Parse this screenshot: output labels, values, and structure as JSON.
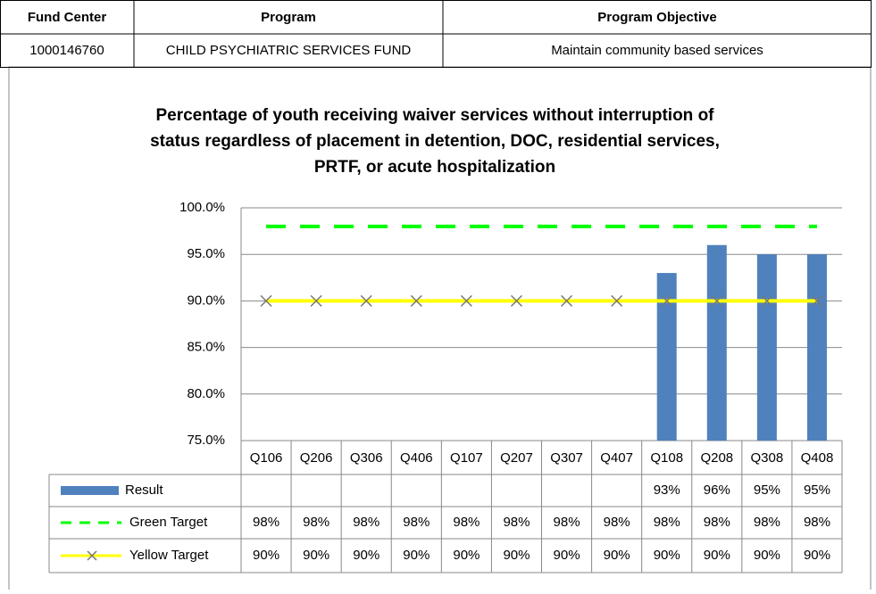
{
  "table": {
    "header": [
      "Fund Center",
      "Program",
      "Program Objective"
    ],
    "rows": [
      [
        "1000146760",
        "CHILD PSYCHIATRIC SERVICES FUND",
        "Maintain community based services"
      ]
    ]
  },
  "chart_data": {
    "type": "bar",
    "title": [
      "Percentage of youth receiving waiver services without interruption of",
      "status regardless of placement in detention, DOC, residential services,",
      "PRTF, or acute hospitalization"
    ],
    "categories": [
      "Q106",
      "Q206",
      "Q306",
      "Q406",
      "Q107",
      "Q207",
      "Q307",
      "Q407",
      "Q108",
      "Q208",
      "Q308",
      "Q408"
    ],
    "ylim": [
      75,
      100
    ],
    "yticks": [
      {
        "value": 75,
        "label": "75.0%"
      },
      {
        "value": 80,
        "label": "80.0%"
      },
      {
        "value": 85,
        "label": "85.0%"
      },
      {
        "value": 90,
        "label": "90.0%"
      },
      {
        "value": 95,
        "label": "95.0%"
      },
      {
        "value": 100,
        "label": "100.0%"
      }
    ],
    "grid": true,
    "series": [
      {
        "name": "Result",
        "type": "bar",
        "color": "#4f81bd",
        "values": [
          null,
          null,
          null,
          null,
          null,
          null,
          null,
          null,
          93,
          96,
          95,
          95
        ],
        "value_labels": [
          null,
          null,
          null,
          null,
          null,
          null,
          null,
          null,
          "93%",
          "96%",
          "95%",
          "95%"
        ]
      },
      {
        "name": "Green Target",
        "type": "line",
        "dash": true,
        "color": "#00ff00",
        "values": [
          98,
          98,
          98,
          98,
          98,
          98,
          98,
          98,
          98,
          98,
          98,
          98
        ],
        "value_labels": [
          "98%",
          "98%",
          "98%",
          "98%",
          "98%",
          "98%",
          "98%",
          "98%",
          "98%",
          "98%",
          "98%",
          "98%"
        ]
      },
      {
        "name": "Yellow Target",
        "type": "line",
        "marker": "x",
        "color": "#ffff00",
        "values": [
          90,
          90,
          90,
          90,
          90,
          90,
          90,
          90,
          90,
          90,
          90,
          90
        ],
        "value_labels": [
          "90%",
          "90%",
          "90%",
          "90%",
          "90%",
          "90%",
          "90%",
          "90%",
          "90%",
          "90%",
          "90%",
          "90%"
        ]
      }
    ]
  }
}
